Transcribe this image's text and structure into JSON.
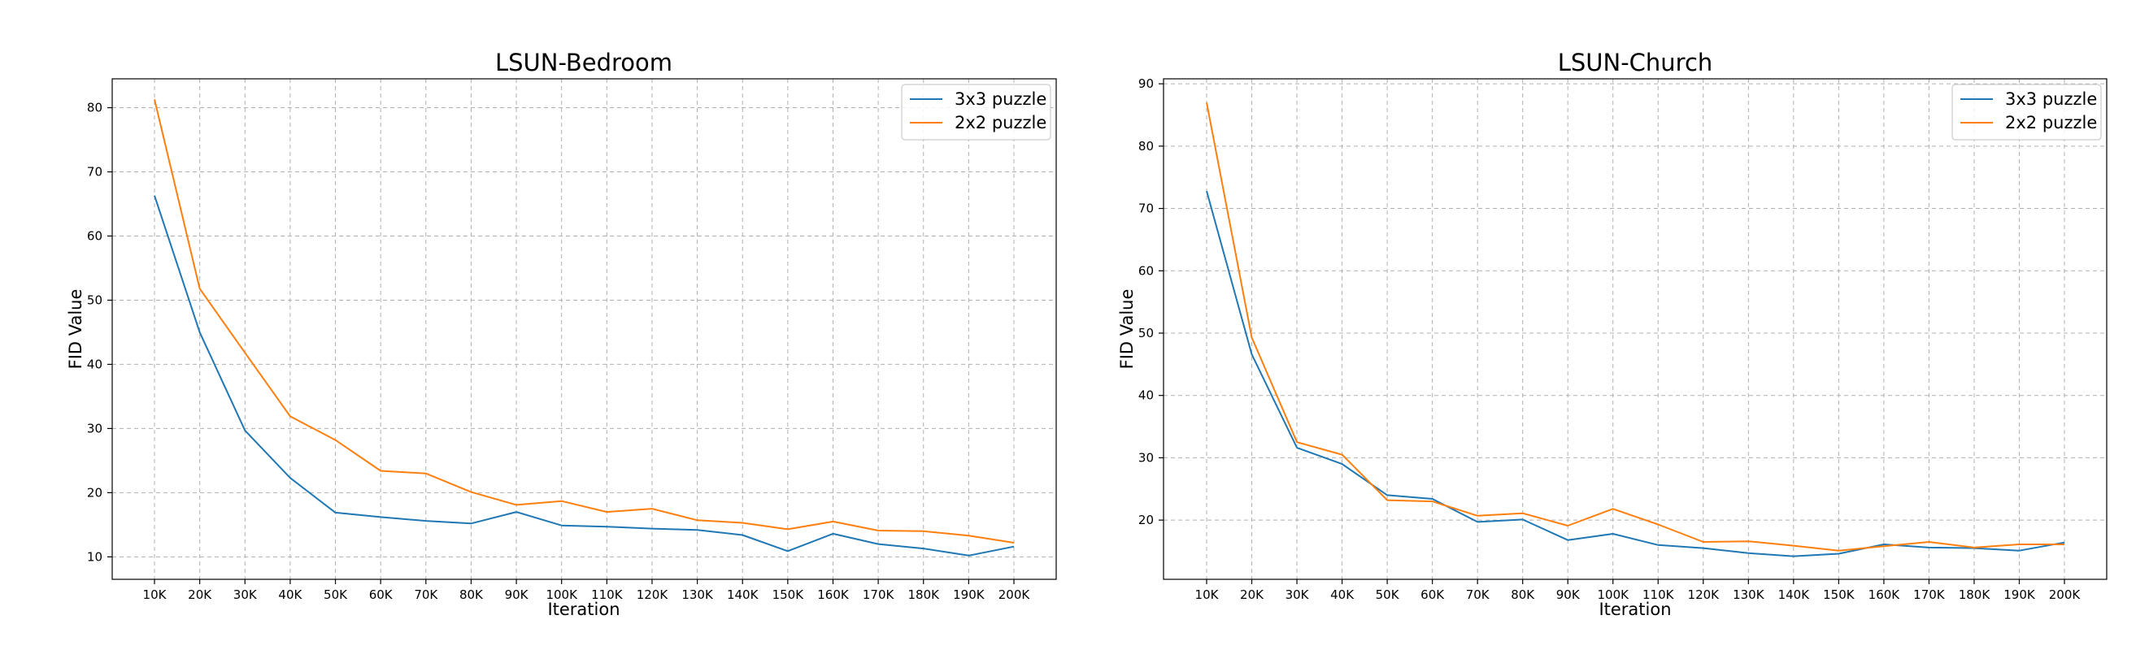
{
  "chart_data": [
    {
      "type": "line",
      "title": "LSUN-Bedroom",
      "xlabel": "Iteration",
      "ylabel": "FID Value",
      "ylim": [
        6.5,
        84.5
      ],
      "yticks": [
        10,
        20,
        30,
        40,
        50,
        60,
        70,
        80
      ],
      "categories": [
        "10K",
        "20K",
        "30K",
        "40K",
        "50K",
        "60K",
        "70K",
        "80K",
        "90K",
        "100K",
        "110K",
        "120K",
        "130K",
        "140K",
        "150K",
        "160K",
        "170K",
        "180K",
        "190K",
        "200K"
      ],
      "grid": true,
      "legend_position": "top-right",
      "series": [
        {
          "name": "3x3 puzzle",
          "color": "#1f77b4",
          "values": [
            66.3,
            45.0,
            29.7,
            22.3,
            16.9,
            16.2,
            15.6,
            15.2,
            17.0,
            14.9,
            14.7,
            14.4,
            14.2,
            13.4,
            10.9,
            13.6,
            12.0,
            11.3,
            10.2,
            11.6
          ]
        },
        {
          "name": "2x2 puzzle",
          "color": "#ff7f0e",
          "values": [
            81.3,
            51.8,
            41.8,
            31.9,
            28.2,
            23.4,
            23.0,
            20.1,
            18.1,
            18.7,
            17.0,
            17.5,
            15.7,
            15.3,
            14.3,
            15.5,
            14.1,
            14.0,
            13.3,
            12.2
          ]
        }
      ]
    },
    {
      "type": "line",
      "title": "LSUN-Church",
      "xlabel": "Iteration",
      "ylabel": "FID Value",
      "ylim": [
        10.5,
        90.8
      ],
      "yticks": [
        20,
        30,
        40,
        50,
        60,
        70,
        80,
        90
      ],
      "categories": [
        "10K",
        "20K",
        "30K",
        "40K",
        "50K",
        "60K",
        "70K",
        "80K",
        "90K",
        "100K",
        "110K",
        "120K",
        "130K",
        "140K",
        "150K",
        "160K",
        "170K",
        "180K",
        "190K",
        "200K"
      ],
      "grid": true,
      "legend_position": "top-right",
      "series": [
        {
          "name": "3x3 puzzle",
          "color": "#1f77b4",
          "values": [
            72.8,
            46.6,
            31.6,
            29.0,
            24.0,
            23.4,
            19.7,
            20.1,
            16.8,
            17.8,
            16.0,
            15.5,
            14.7,
            14.2,
            14.6,
            16.1,
            15.6,
            15.5,
            15.1,
            16.4
          ]
        },
        {
          "name": "2x2 puzzle",
          "color": "#ff7f0e",
          "values": [
            87.0,
            49.3,
            32.5,
            30.5,
            23.2,
            23.0,
            20.7,
            21.1,
            19.1,
            21.8,
            19.3,
            16.5,
            16.6,
            15.9,
            15.1,
            15.8,
            16.5,
            15.6,
            16.1,
            16.1
          ]
        }
      ]
    }
  ]
}
